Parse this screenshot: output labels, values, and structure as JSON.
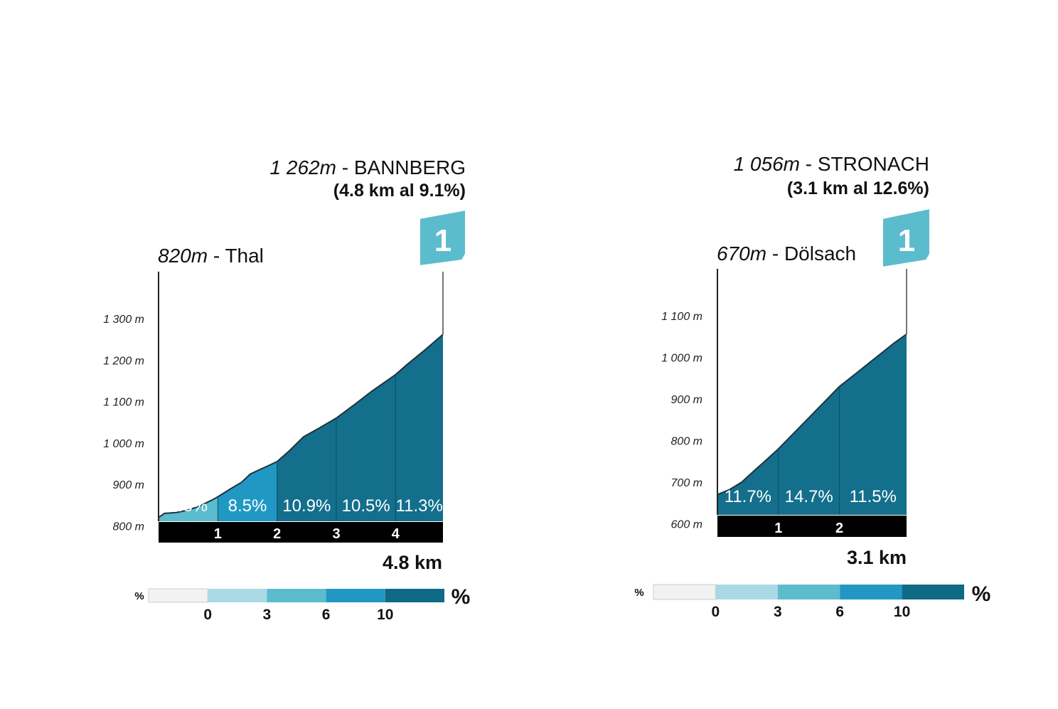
{
  "legend": {
    "title_small": "%",
    "title_big": "%",
    "ticks": [
      "0",
      "3",
      "6",
      "10"
    ],
    "colors": [
      "#f2f2f2",
      "#a9d9e4",
      "#5bbccd",
      "#2198c4",
      "#0f6a86"
    ]
  },
  "chart_data": [
    {
      "type": "area",
      "title": "1 262m - BANNBERG",
      "summit": {
        "altitude": "1 262m",
        "name": "BANNBERG",
        "info": "(4.8 km al 9.1%)",
        "category": "1"
      },
      "start": {
        "altitude": "820m",
        "name": "Thal"
      },
      "distance_label": "4.8 km",
      "ylim": [
        780,
        1350
      ],
      "xlim": [
        0,
        4.8
      ],
      "y_ticks": [
        "1 300 m",
        "1 200 m",
        "1 100 m",
        "1 000 m",
        "900 m",
        "800 m"
      ],
      "y_tick_values": [
        1300,
        1200,
        1100,
        1000,
        900,
        800
      ],
      "km_markers": [
        "1",
        "2",
        "3",
        "4"
      ],
      "segments": [
        {
          "from": 0,
          "to": 1,
          "gradient": "4.8%",
          "color": "#5bbccd"
        },
        {
          "from": 1,
          "to": 2,
          "gradient": "8.5%",
          "color": "#2198c4"
        },
        {
          "from": 2,
          "to": 3,
          "gradient": "10.9%",
          "color": "#136f8c"
        },
        {
          "from": 3,
          "to": 4,
          "gradient": "10.5%",
          "color": "#136f8c"
        },
        {
          "from": 4,
          "to": 4.8,
          "gradient": "11.3%",
          "color": "#136f8c"
        }
      ],
      "profile": [
        [
          0,
          820
        ],
        [
          0.1,
          830
        ],
        [
          0.3,
          832
        ],
        [
          0.5,
          838
        ],
        [
          0.7,
          848
        ],
        [
          0.9,
          862
        ],
        [
          1.0,
          870
        ],
        [
          1.2,
          888
        ],
        [
          1.4,
          905
        ],
        [
          1.55,
          925
        ],
        [
          1.7,
          935
        ],
        [
          2.0,
          955
        ],
        [
          2.2,
          980
        ],
        [
          2.45,
          1015
        ],
        [
          2.7,
          1035
        ],
        [
          3.0,
          1060
        ],
        [
          3.3,
          1092
        ],
        [
          3.6,
          1125
        ],
        [
          4.0,
          1165
        ],
        [
          4.2,
          1190
        ],
        [
          4.5,
          1225
        ],
        [
          4.8,
          1262
        ]
      ]
    },
    {
      "type": "area",
      "title": "1 056m - STRONACH",
      "summit": {
        "altitude": "1 056m",
        "name": "STRONACH",
        "info": "(3.1 km al 12.6%)",
        "category": "1"
      },
      "start": {
        "altitude": "670m",
        "name": "Dölsach"
      },
      "distance_label": "3.1 km",
      "ylim": [
        580,
        1150
      ],
      "xlim": [
        0,
        3.1
      ],
      "y_ticks": [
        "1 100 m",
        "1 000 m",
        "900 m",
        "800 m",
        "700 m",
        "600 m"
      ],
      "y_tick_values": [
        1100,
        1000,
        900,
        800,
        700,
        600
      ],
      "km_markers": [
        "1",
        "2"
      ],
      "segments": [
        {
          "from": 0,
          "to": 1,
          "gradient": "11.7%",
          "color": "#136f8c"
        },
        {
          "from": 1,
          "to": 2,
          "gradient": "14.7%",
          "color": "#136f8c"
        },
        {
          "from": 2,
          "to": 3.1,
          "gradient": "11.5%",
          "color": "#136f8c"
        }
      ],
      "profile": [
        [
          0,
          670
        ],
        [
          0.2,
          682
        ],
        [
          0.4,
          700
        ],
        [
          0.6,
          727
        ],
        [
          0.8,
          753
        ],
        [
          1.0,
          780
        ],
        [
          1.3,
          825
        ],
        [
          1.6,
          870
        ],
        [
          1.9,
          915
        ],
        [
          2.0,
          930
        ],
        [
          2.3,
          965
        ],
        [
          2.6,
          1000
        ],
        [
          2.9,
          1035
        ],
        [
          3.1,
          1056
        ]
      ]
    }
  ]
}
